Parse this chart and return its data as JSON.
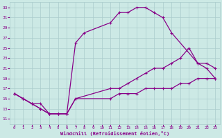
{
  "xlabel": "Windchill (Refroidissement éolien,°C)",
  "xlim": [
    -0.5,
    23.5
  ],
  "ylim": [
    10,
    34
  ],
  "xticks": [
    0,
    1,
    2,
    3,
    4,
    5,
    6,
    7,
    8,
    9,
    10,
    11,
    12,
    13,
    14,
    15,
    16,
    17,
    18,
    19,
    20,
    21,
    22,
    23
  ],
  "yticks": [
    11,
    13,
    15,
    17,
    19,
    21,
    23,
    25,
    27,
    29,
    31,
    33
  ],
  "bg_color": "#cce9e5",
  "line_color": "#880088",
  "grid_color": "#aacccc",
  "curve1_x": [
    0,
    1,
    2,
    3,
    4,
    5,
    6,
    7,
    8,
    11,
    12,
    13,
    14,
    15,
    16,
    17,
    18,
    21,
    22,
    23
  ],
  "curve1_y": [
    16,
    15,
    14,
    13,
    12,
    12,
    12,
    26,
    28,
    30,
    32,
    32,
    33,
    33,
    32,
    31,
    28,
    22,
    21,
    19
  ],
  "curve2_x": [
    0,
    1,
    2,
    3,
    4,
    5,
    6,
    7,
    11,
    12,
    13,
    14,
    15,
    16,
    17,
    18,
    19,
    20,
    21,
    22,
    23
  ],
  "curve2_y": [
    16,
    15,
    14,
    14,
    12,
    12,
    12,
    15,
    17,
    17,
    18,
    19,
    20,
    21,
    21,
    22,
    23,
    25,
    22,
    22,
    21
  ],
  "curve3_x": [
    0,
    1,
    2,
    3,
    4,
    5,
    6,
    7,
    11,
    12,
    13,
    14,
    15,
    16,
    17,
    18,
    19,
    20,
    21,
    22,
    23
  ],
  "curve3_y": [
    16,
    15,
    14,
    13,
    12,
    12,
    12,
    15,
    15,
    16,
    16,
    16,
    17,
    17,
    17,
    17,
    18,
    18,
    19,
    19,
    19
  ]
}
